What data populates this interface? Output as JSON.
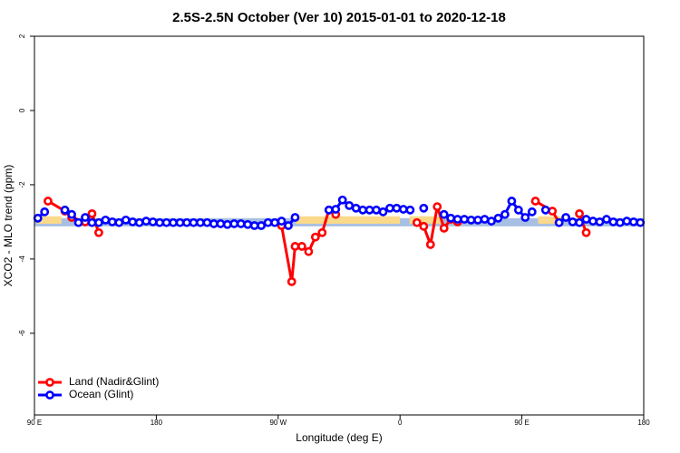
{
  "chart_data": {
    "type": "line",
    "title": "2.5S-2.5N October (Ver 10)   2015-01-01 to 2020-12-18",
    "x_label": "Longitude (deg E)",
    "y_label": "XCO2 - MLO trend (ppm)",
    "xlim": [
      90,
      540
    ],
    "ylim": [
      -8.2,
      2
    ],
    "xticks": [
      {
        "value": 90,
        "label": "90 E"
      },
      180,
      {
        "value": 270,
        "label": "90 W"
      },
      {
        "value": 360,
        "label": "0"
      },
      {
        "value": 450,
        "label": "90 E"
      },
      {
        "value": 540,
        "label": "180"
      }
    ],
    "yticks": [
      2,
      0,
      -2,
      -4,
      -6
    ],
    "legend": "bottom-left",
    "bands": [
      {
        "color": "#a7bfe2",
        "x": [
          90,
          540
        ],
        "y": [
          -3.12,
          -2.9
        ]
      },
      {
        "color": "#fbd98a",
        "x": [
          92,
          110
        ],
        "y": [
          -3.05,
          -2.85
        ]
      },
      {
        "color": "#fbd98a",
        "x": [
          283,
          360
        ],
        "y": [
          -3.05,
          -2.85
        ]
      },
      {
        "color": "#fbd98a",
        "x": [
          367,
          392
        ],
        "y": [
          -3.05,
          -2.85
        ]
      },
      {
        "color": "#fbd98a",
        "x": [
          462,
          480
        ],
        "y": [
          -3.05,
          -2.85
        ]
      }
    ],
    "series": [
      {
        "name": "Land (Nadir&Glint)",
        "color": "#ff0000",
        "x": [
          100,
          112.5,
          117.5,
          127.5,
          132.5,
          137.5,
          200,
          272.5,
          280,
          282.5,
          287.5,
          292.5,
          297.5,
          302.5,
          307.5,
          312.5,
          340,
          372.5,
          377.5,
          382.5,
          387.5,
          392.5,
          397.5,
          402.5,
          430,
          460,
          472.5,
          477.5,
          485,
          492.5,
          497.5
        ],
        "values": [
          -2.44,
          -2.71,
          -2.88,
          -3.0,
          -2.78,
          -3.29,
          null,
          -3.1,
          -4.61,
          -3.66,
          -3.66,
          -3.8,
          -3.41,
          -3.29,
          -2.68,
          -2.8,
          null,
          -3.02,
          -3.12,
          -3.61,
          -2.59,
          -3.17,
          -2.93,
          -3.0,
          null,
          -2.44,
          -2.71,
          -3.02,
          null,
          -2.78,
          -3.29
        ]
      },
      {
        "name": "Ocean (Glint)",
        "color": "#0000ff",
        "x": [
          92.5,
          97.5,
          107.5,
          112.5,
          117.5,
          122.5,
          127.5,
          132.5,
          137.5,
          142.5,
          147.5,
          152.5,
          157.5,
          162.5,
          167.5,
          172.5,
          177.5,
          182.5,
          187.5,
          192.5,
          197.5,
          202.5,
          207.5,
          212.5,
          217.5,
          222.5,
          227.5,
          232.5,
          237.5,
          242.5,
          247.5,
          252.5,
          257.5,
          262.5,
          267.5,
          272.5,
          277.5,
          282.5,
          295,
          307.5,
          312.5,
          317.5,
          322.5,
          327.5,
          332.5,
          337.5,
          342.5,
          347.5,
          352.5,
          357.5,
          362.5,
          367.5,
          372.5,
          377.5,
          385,
          392.5,
          397.5,
          402.5,
          407.5,
          412.5,
          417.5,
          422.5,
          427.5,
          432.5,
          437.5,
          442.5,
          447.5,
          452.5,
          457.5,
          462.5,
          467.5,
          472.5,
          477.5,
          482.5,
          487.5,
          492.5,
          497.5,
          502.5,
          507.5,
          512.5,
          517.5,
          522.5,
          527.5,
          532.5,
          537.5
        ],
        "values": [
          -2.9,
          -2.73,
          null,
          -2.68,
          -2.8,
          -3.02,
          -2.88,
          -3.02,
          -3.02,
          -2.95,
          -3.0,
          -3.02,
          -2.95,
          -3.0,
          -3.02,
          -2.98,
          -3.0,
          -3.02,
          -3.02,
          -3.02,
          -3.02,
          -3.02,
          -3.02,
          -3.02,
          -3.02,
          -3.05,
          -3.05,
          -3.07,
          -3.05,
          -3.05,
          -3.07,
          -3.1,
          -3.1,
          -3.02,
          -3.02,
          -2.98,
          -3.1,
          -2.88,
          null,
          -2.68,
          -2.66,
          -2.41,
          -2.56,
          -2.63,
          -2.68,
          -2.68,
          -2.68,
          -2.73,
          -2.63,
          -2.63,
          -2.66,
          -2.68,
          null,
          -2.63,
          null,
          -2.8,
          -2.9,
          -2.93,
          -2.93,
          -2.95,
          -2.95,
          -2.93,
          -2.98,
          -2.9,
          -2.8,
          -2.44,
          -2.68,
          -2.88,
          -2.73,
          null,
          -2.68,
          null,
          -3.02,
          -2.88,
          -3.0,
          -3.02,
          -2.93,
          -2.98,
          -3.0,
          -2.93,
          -3.0,
          -3.02,
          -2.98,
          -3.0,
          -3.02
        ]
      }
    ]
  }
}
